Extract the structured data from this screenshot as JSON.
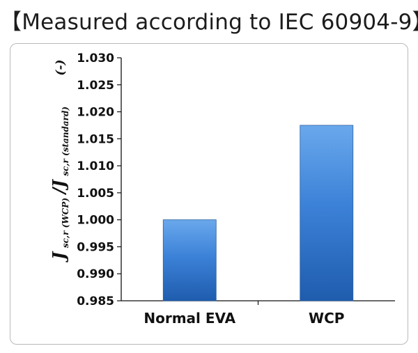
{
  "title": "【Measured according to IEC 60904-9】",
  "colors": {
    "bar_top": "#6aa8ec",
    "bar_mid": "#3c82d8",
    "bar_bottom": "#1f5cae",
    "axis": "#111111",
    "border": "#b9b9b9"
  },
  "chart_data": {
    "type": "bar",
    "title": "",
    "categories": [
      "Normal EVA",
      "WCP"
    ],
    "values": [
      1.0,
      1.0175
    ],
    "ylim": [
      0.985,
      1.03
    ],
    "yticks": [
      0.985,
      0.99,
      0.995,
      1.0,
      1.005,
      1.01,
      1.015,
      1.02,
      1.025,
      1.03
    ],
    "ytick_labels": [
      "0.985",
      "0.990",
      "0.995",
      "1.000",
      "1.005",
      "1.010",
      "1.015",
      "1.020",
      "1.025",
      "1.030"
    ],
    "unit_label": "(-)",
    "ylabel": {
      "main": "J",
      "sub1": "sc,r (WCP)",
      "sep": "/J",
      "sub2": "sc,r (standard)"
    },
    "xlabel": "",
    "grid": false,
    "legend": "none"
  }
}
